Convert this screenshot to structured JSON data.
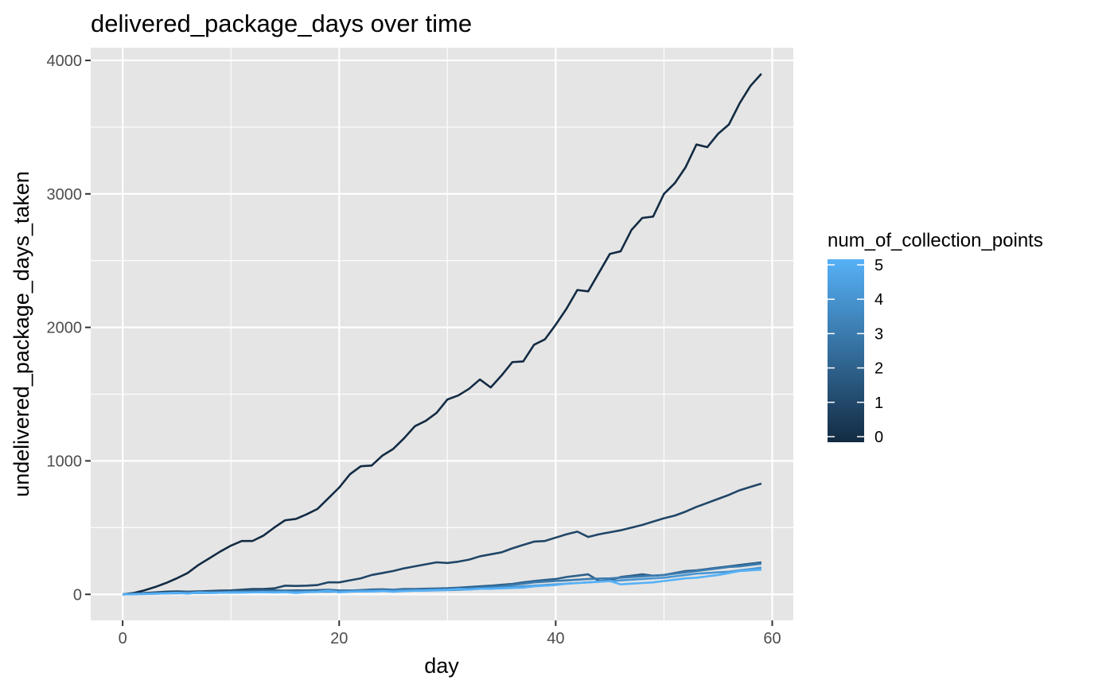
{
  "chart_data": {
    "type": "line",
    "title": "delivered_package_days over time",
    "xlabel": "day",
    "ylabel": "undelivered_package_days_taken",
    "xlim": [
      -2.95,
      61.95
    ],
    "ylim": [
      -195,
      4095
    ],
    "xticks": [
      0,
      20,
      40,
      60
    ],
    "yticks": [
      0,
      1000,
      2000,
      3000,
      4000
    ],
    "grid": true,
    "legend": {
      "title": "num_of_collection_points",
      "placement": "right",
      "type": "colorbar",
      "ticks": [
        0,
        1,
        2,
        3,
        4,
        5
      ],
      "low_color": "#132B43",
      "high_color": "#56B1F7"
    },
    "colors": {
      "panel_background": "#E5E5E5",
      "grid": "#FFFFFF",
      "low": "#132B43",
      "high": "#56B1F7"
    },
    "x": [
      0,
      1,
      2,
      3,
      4,
      5,
      6,
      7,
      8,
      9,
      10,
      11,
      12,
      13,
      14,
      15,
      16,
      17,
      18,
      19,
      20,
      21,
      22,
      23,
      24,
      25,
      26,
      27,
      28,
      29,
      30,
      31,
      32,
      33,
      34,
      35,
      36,
      37,
      38,
      39,
      40,
      41,
      42,
      43,
      44,
      45,
      46,
      47,
      48,
      49,
      50,
      51,
      52,
      53,
      54,
      55,
      56,
      57,
      58,
      59
    ],
    "series": [
      {
        "name": "0",
        "level": 0,
        "values": [
          0,
          10,
          30,
          55,
          85,
          120,
          160,
          220,
          270,
          320,
          365,
          400,
          400,
          440,
          500,
          555,
          565,
          600,
          640,
          720,
          800,
          900,
          960,
          965,
          1040,
          1090,
          1170,
          1260,
          1300,
          1360,
          1460,
          1490,
          1540,
          1610,
          1550,
          1640,
          1740,
          1745,
          1870,
          1910,
          2020,
          2140,
          2280,
          2270,
          2410,
          2550,
          2570,
          2730,
          2820,
          2830,
          3000,
          3080,
          3200,
          3370,
          3350,
          3450,
          3520,
          3680,
          3810,
          3900
        ]
      },
      {
        "name": "1",
        "level": 1,
        "values": [
          0,
          5,
          10,
          15,
          20,
          22,
          20,
          22,
          25,
          28,
          30,
          35,
          40,
          40,
          45,
          65,
          63,
          65,
          70,
          90,
          90,
          105,
          120,
          145,
          160,
          175,
          195,
          210,
          225,
          240,
          235,
          245,
          260,
          285,
          300,
          315,
          345,
          370,
          395,
          400,
          425,
          450,
          470,
          430,
          450,
          465,
          480,
          500,
          520,
          545,
          570,
          590,
          620,
          655,
          685,
          715,
          745,
          780,
          805,
          830
        ]
      },
      {
        "name": "2",
        "level": 2,
        "values": [
          0,
          4,
          8,
          10,
          12,
          14,
          16,
          18,
          20,
          22,
          24,
          26,
          28,
          30,
          30,
          28,
          30,
          30,
          32,
          34,
          30,
          28,
          32,
          36,
          38,
          35,
          40,
          40,
          42,
          44,
          46,
          50,
          55,
          60,
          65,
          72,
          78,
          90,
          100,
          108,
          115,
          130,
          140,
          150,
          100,
          105,
          130,
          140,
          150,
          140,
          145,
          160,
          175,
          180,
          190,
          200,
          210,
          220,
          230,
          240
        ]
      },
      {
        "name": "3",
        "level": 3,
        "values": [
          0,
          3,
          6,
          8,
          10,
          12,
          14,
          15,
          16,
          17,
          18,
          19,
          20,
          21,
          22,
          23,
          24,
          25,
          26,
          27,
          28,
          29,
          30,
          31,
          32,
          33,
          34,
          35,
          36,
          37,
          38,
          40,
          45,
          50,
          55,
          60,
          70,
          80,
          90,
          95,
          100,
          105,
          110,
          115,
          118,
          120,
          125,
          130,
          135,
          140,
          145,
          155,
          165,
          175,
          185,
          195,
          205,
          210,
          220,
          230
        ]
      },
      {
        "name": "4",
        "level": 4,
        "values": [
          0,
          2,
          4,
          5,
          7,
          8,
          9,
          10,
          11,
          12,
          13,
          14,
          15,
          16,
          17,
          17,
          18,
          18,
          19,
          20,
          20,
          21,
          22,
          23,
          24,
          25,
          26,
          27,
          28,
          30,
          32,
          34,
          38,
          42,
          46,
          50,
          55,
          60,
          65,
          70,
          75,
          80,
          85,
          90,
          95,
          100,
          105,
          110,
          115,
          120,
          125,
          135,
          145,
          155,
          160,
          165,
          170,
          180,
          190,
          200
        ]
      },
      {
        "name": "5",
        "level": 5,
        "values": [
          0,
          1,
          3,
          5,
          8,
          12,
          5,
          15,
          10,
          12,
          15,
          14,
          15,
          16,
          14,
          16,
          10,
          16,
          18,
          28,
          15,
          20,
          22,
          22,
          25,
          20,
          25,
          28,
          30,
          32,
          34,
          40,
          36,
          42,
          42,
          45,
          48,
          50,
          60,
          65,
          70,
          80,
          85,
          90,
          95,
          100,
          75,
          80,
          85,
          90,
          100,
          110,
          120,
          125,
          135,
          145,
          160,
          175,
          180,
          185
        ]
      }
    ]
  }
}
